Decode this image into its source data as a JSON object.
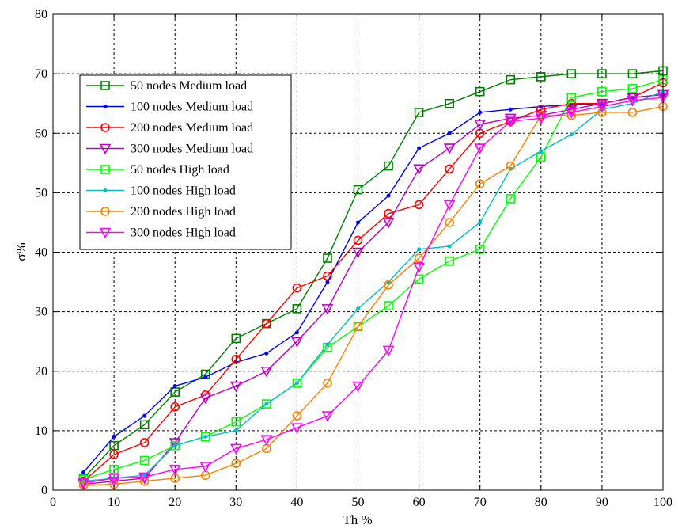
{
  "chart_data": {
    "type": "line",
    "xlabel": "Th %",
    "ylabel": "σ%",
    "xlim": [
      0,
      100
    ],
    "ylim": [
      0,
      80
    ],
    "xticks": [
      "0",
      "10",
      "20",
      "30",
      "40",
      "50",
      "60",
      "70",
      "80",
      "90",
      "100"
    ],
    "yticks": [
      "0",
      "10",
      "20",
      "30",
      "40",
      "50",
      "60",
      "70",
      "80"
    ],
    "grid": true,
    "legend_position": "top-left",
    "x": [
      5,
      10,
      15,
      20,
      25,
      30,
      35,
      40,
      45,
      50,
      55,
      60,
      65,
      70,
      75,
      80,
      85,
      90,
      95,
      100
    ],
    "series": [
      {
        "name": "50 nodes Medium load",
        "color": "#008000",
        "marker": "square",
        "values": [
          2,
          7.5,
          11,
          16.5,
          19.5,
          25.5,
          28,
          30.5,
          39,
          50.5,
          54.5,
          63.5,
          65,
          67,
          69,
          69.5,
          70,
          70,
          70,
          70.5
        ]
      },
      {
        "name": "100 nodes Medium load",
        "color": "#0000ff",
        "marker": "dot",
        "values": [
          3,
          9,
          12.5,
          17.5,
          19,
          21.5,
          23,
          26.5,
          35,
          45,
          49.5,
          57.5,
          60,
          63.5,
          64,
          64.5,
          64.8,
          65,
          66,
          66.5
        ]
      },
      {
        "name": "200 nodes Medium load",
        "color": "#ff0000",
        "marker": "circle",
        "values": [
          1.5,
          6,
          8,
          14,
          16,
          22,
          28,
          34,
          36,
          42,
          46.5,
          48,
          54,
          60,
          62,
          64,
          65,
          65,
          66,
          68.5
        ]
      },
      {
        "name": "300 nodes Medium load",
        "color": "#bf00bf",
        "marker": "triangle-down",
        "values": [
          1,
          1.5,
          2,
          8,
          15.5,
          17.5,
          20,
          25,
          30.5,
          40,
          45,
          54,
          57.5,
          61.5,
          62.5,
          63,
          64,
          65,
          66,
          66.5
        ]
      },
      {
        "name": "50 nodes High load",
        "color": "#00ff00",
        "marker": "square",
        "values": [
          1.8,
          3.5,
          5,
          7.5,
          9,
          11.5,
          14.5,
          18,
          24,
          27.5,
          31,
          35.5,
          38.5,
          40.5,
          49,
          56,
          66,
          67,
          67.5,
          69
        ]
      },
      {
        "name": "100 nodes High load",
        "color": "#00bfbf",
        "marker": "dot",
        "values": [
          1.5,
          2,
          2.5,
          7.5,
          9,
          10,
          14.5,
          18,
          24.5,
          30.5,
          35,
          40.5,
          41,
          45,
          54,
          57,
          59.8,
          64,
          65,
          67
        ]
      },
      {
        "name": "200 nodes High load",
        "color": "#ff8000",
        "marker": "circle",
        "values": [
          0.8,
          1,
          1.5,
          2,
          2.5,
          4.5,
          7,
          12.5,
          18,
          27.5,
          34.5,
          39,
          45,
          51.5,
          54.5,
          63,
          63,
          63.5,
          63.5,
          64.5
        ]
      },
      {
        "name": "300 nodes High load",
        "color": "#ff00ff",
        "marker": "triangle-down",
        "values": [
          1.2,
          2,
          2.2,
          3.5,
          4,
          7,
          8.5,
          10.5,
          12.5,
          17.5,
          23.5,
          37.5,
          48,
          57.5,
          62,
          62.5,
          63.5,
          64.5,
          65.5,
          66
        ]
      }
    ]
  }
}
